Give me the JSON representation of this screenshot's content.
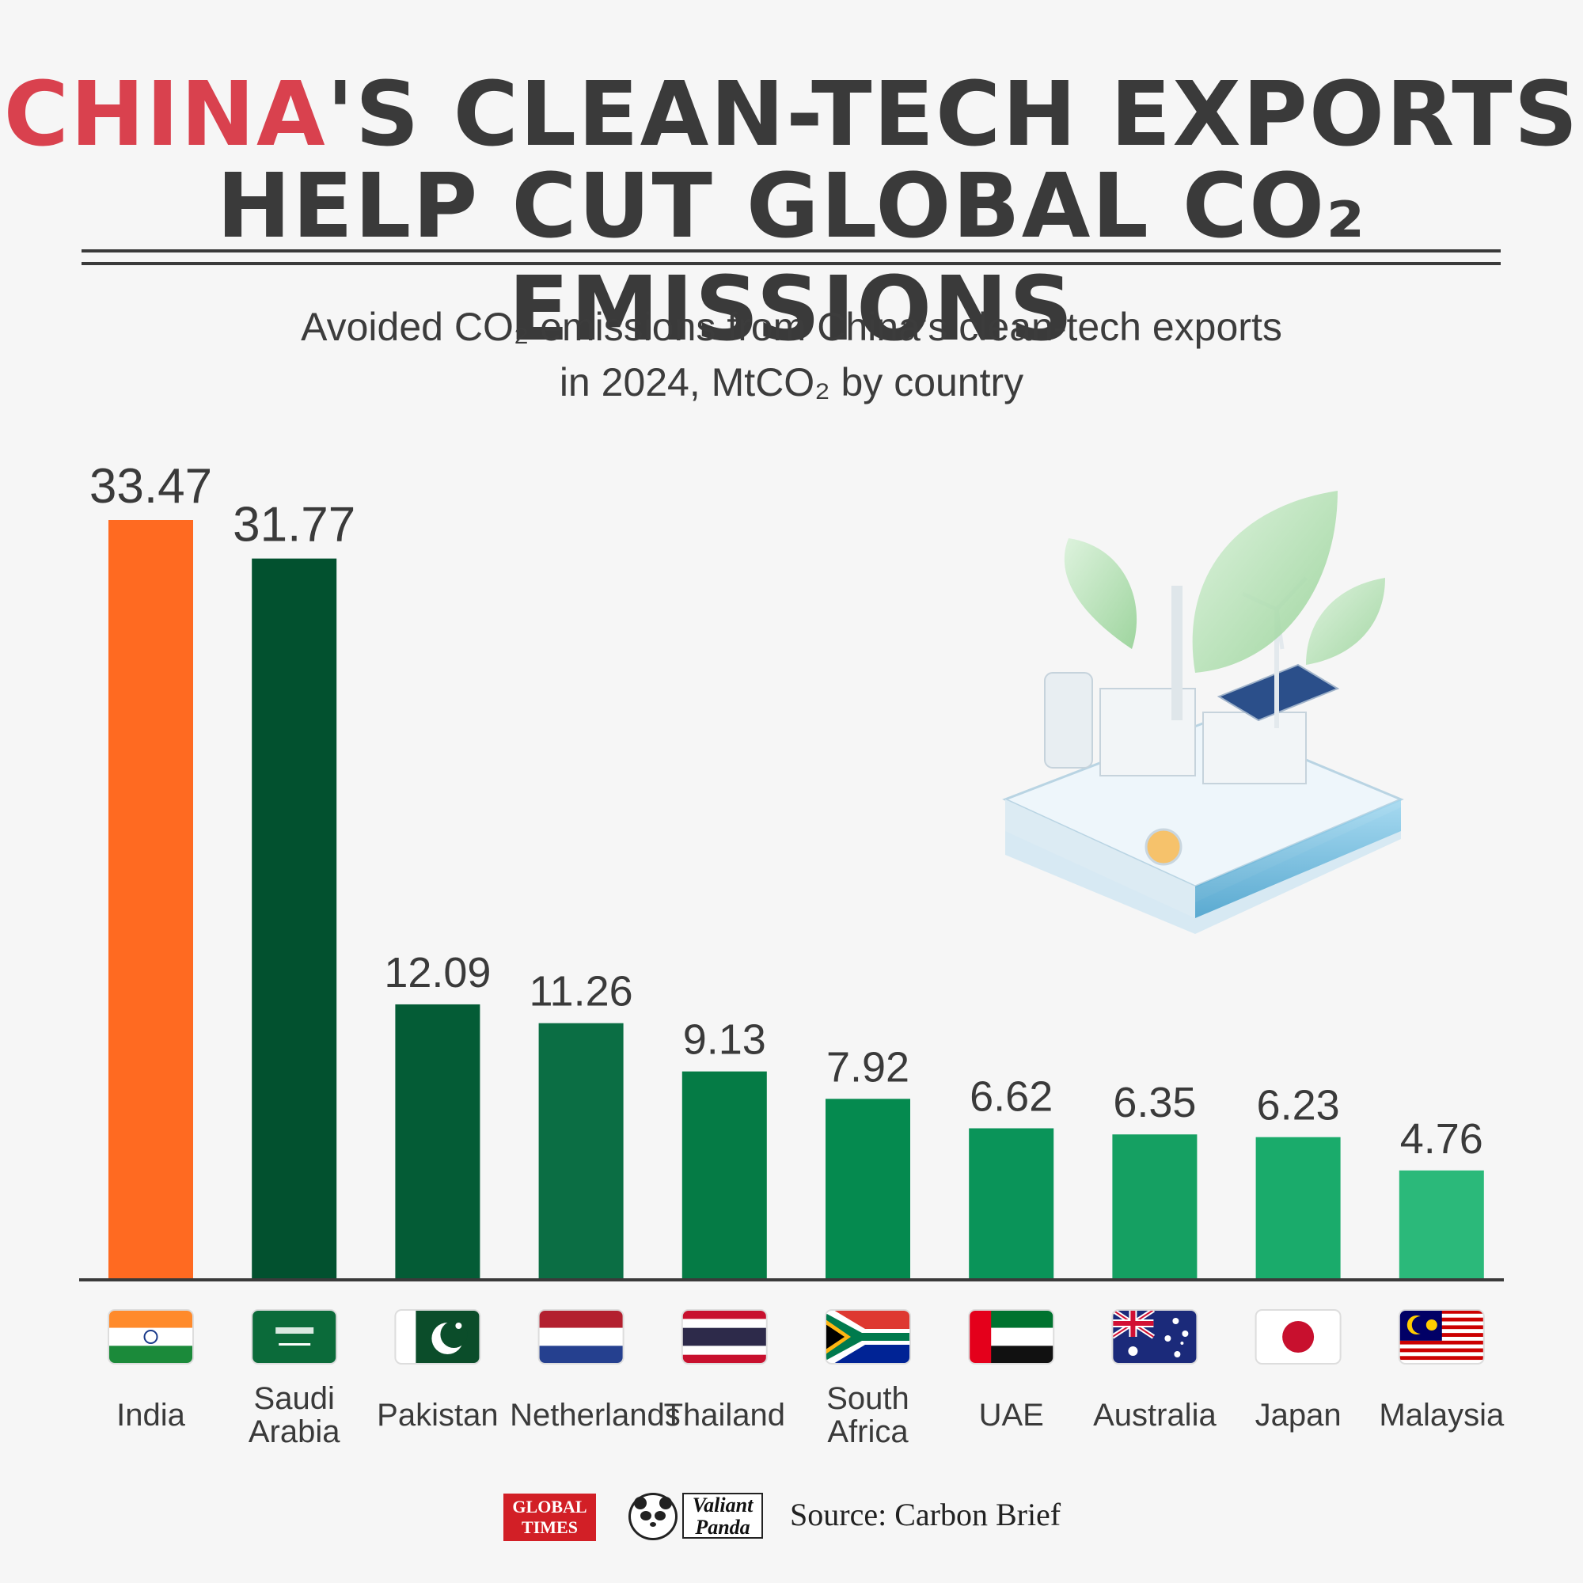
{
  "title": {
    "line1_accent": "CHINA",
    "line1_rest": "'S CLEAN-TECH EXPORTS",
    "line2": "HELP CUT GLOBAL CO₂ EMISSIONS"
  },
  "subtitle": {
    "line1": "Avoided CO₂ emissions from China's clean-tech exports",
    "line2": "in 2024, MtCO₂ by country"
  },
  "chart_data": {
    "type": "bar",
    "title": "Avoided CO₂ emissions from China's clean-tech exports in 2024, MtCO₂ by country",
    "categories": [
      "India",
      "Saudi Arabia",
      "Pakistan",
      "Netherlands",
      "Thailand",
      "South Africa",
      "UAE",
      "Australia",
      "Japan",
      "Malaysia"
    ],
    "category_lines": [
      [
        "India"
      ],
      [
        "Saudi",
        "Arabia"
      ],
      [
        "Pakistan"
      ],
      [
        "Netherlands"
      ],
      [
        "Thailand"
      ],
      [
        "South",
        "Africa"
      ],
      [
        "UAE"
      ],
      [
        "Australia"
      ],
      [
        "Japan"
      ],
      [
        "Malaysia"
      ]
    ],
    "values": [
      33.47,
      31.77,
      12.09,
      11.26,
      9.13,
      7.92,
      6.62,
      6.35,
      6.23,
      4.76
    ],
    "value_labels": [
      "33.47",
      "31.77",
      "12.09",
      "11.26",
      "9.13",
      "7.92",
      "6.62",
      "6.35",
      "6.23",
      "4.76"
    ],
    "bar_colors": [
      "#ff6a21",
      "#02512f",
      "#045c36",
      "#0b6e44",
      "#057b45",
      "#058a4f",
      "#0a9459",
      "#15a062",
      "#1aab6b",
      "#2bb97a"
    ],
    "ylim": [
      0,
      33.47
    ],
    "grid": false,
    "legend": "none"
  },
  "colors": {
    "accent": "#d9414e",
    "text": "#3a3a3a",
    "background": "#f6f6f6"
  },
  "flags": [
    "india-flag",
    "saudi-arabia-flag",
    "pakistan-flag",
    "netherlands-flag",
    "thailand-flag",
    "south-africa-flag",
    "uae-flag",
    "australia-flag",
    "japan-flag",
    "malaysia-flag"
  ],
  "footer": {
    "logo1": "GLOBAL TIMES",
    "logo2_line1": "Valiant",
    "logo2_line2": "Panda",
    "source": "Source: Carbon Brief"
  }
}
